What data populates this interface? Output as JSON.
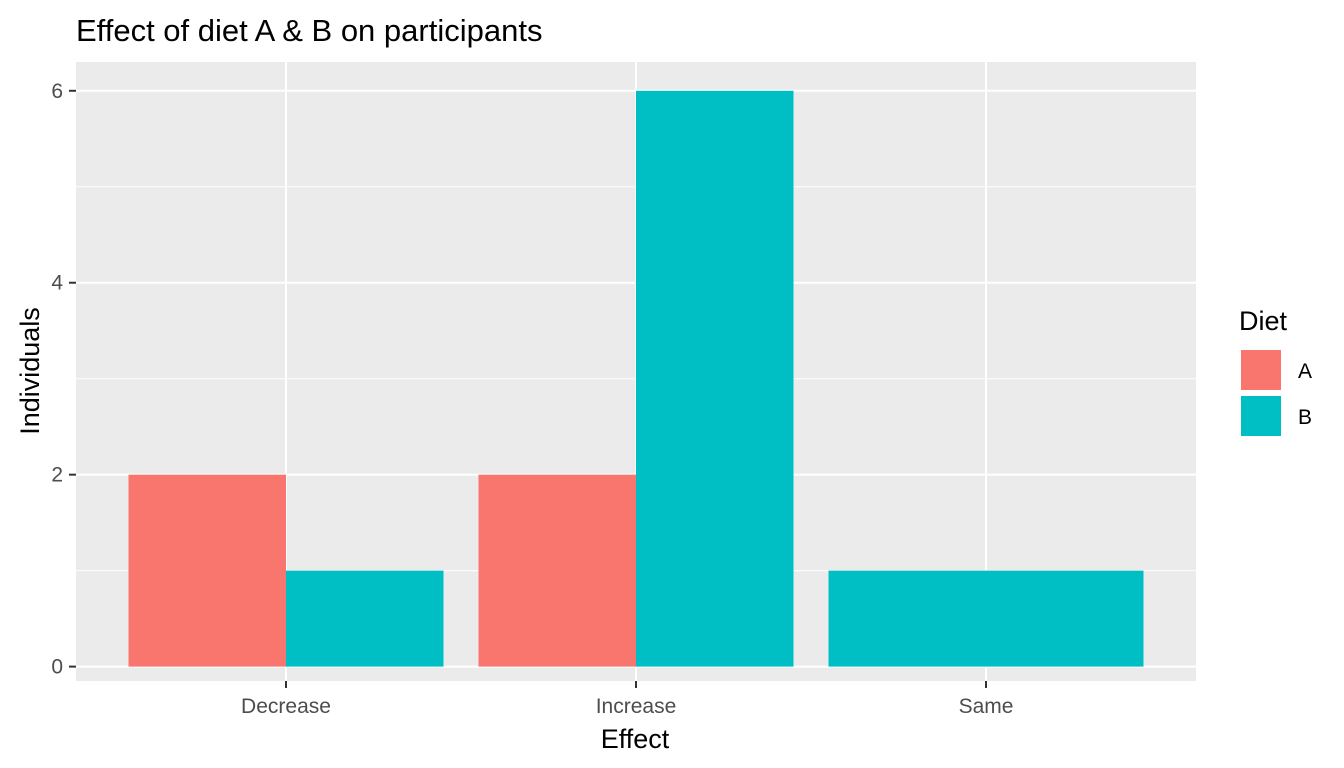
{
  "chart_data": {
    "type": "bar",
    "title": "Effect of diet A & B on participants",
    "xlabel": "Effect",
    "ylabel": "Individuals",
    "categories": [
      "Decrease",
      "Increase",
      "Same"
    ],
    "series": [
      {
        "name": "A",
        "color": "#F8766D",
        "values": [
          2,
          2,
          null
        ]
      },
      {
        "name": "B",
        "color": "#00BFC4",
        "values": [
          1,
          6,
          1
        ]
      }
    ],
    "ylim": [
      -0.15,
      6.3
    ],
    "yticks": [
      0,
      2,
      4,
      6
    ],
    "grid": true,
    "legend": {
      "title": "Diet",
      "position": "right"
    },
    "bar_position": "dodge2"
  },
  "colors": {
    "panel_background": "#EBEBEB",
    "grid_major": "#FFFFFF"
  }
}
